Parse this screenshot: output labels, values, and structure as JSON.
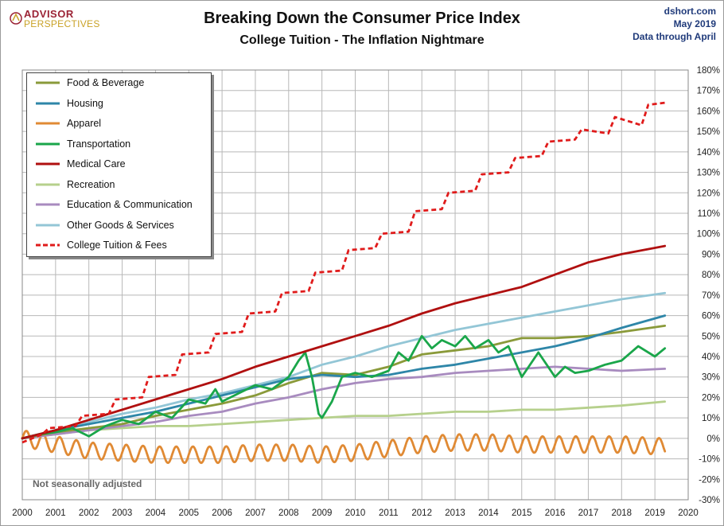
{
  "header": {
    "logo_line1": "ADVISOR",
    "logo_line2": "PERSPECTIVES",
    "title": "Breaking Down the Consumer Price Index",
    "subtitle": "College Tuition  - The Inflation Nightmare",
    "source_lines": [
      "dshort.com",
      "May 2019",
      "Data through April"
    ]
  },
  "note": "Not seasonally adjusted",
  "colors": {
    "food": "#8a9a3a",
    "housing": "#2e86a8",
    "apparel": "#e08a34",
    "transportation": "#1aa64a",
    "medical": "#b01010",
    "recreation": "#b6d08c",
    "education": "#a88bbf",
    "other": "#93c6d6",
    "tuition": "#e01b1b",
    "grid": "#b8b8b8",
    "brand_red": "#9b2335",
    "brand_gold": "#c9a227"
  },
  "chart_data": {
    "type": "line",
    "title": "Breaking Down the Consumer Price Index",
    "subtitle": "College Tuition  - The Inflation Nightmare",
    "x_ticks": [
      "2000",
      "2001",
      "2002",
      "2003",
      "2004",
      "2005",
      "2006",
      "2007",
      "2008",
      "2009",
      "2010",
      "2011",
      "2012",
      "2013",
      "2014",
      "2015",
      "2016",
      "2017",
      "2018",
      "2019",
      "2020"
    ],
    "y_ticks": [
      "180%",
      "170%",
      "160%",
      "150%",
      "140%",
      "130%",
      "120%",
      "110%",
      "100%",
      "90%",
      "80%",
      "70%",
      "60%",
      "50%",
      "40%",
      "30%",
      "20%",
      "10%",
      "0%",
      "-10%",
      "-20%",
      "-30%"
    ],
    "xlim": [
      2000,
      2020
    ],
    "ylim": [
      -30,
      180
    ],
    "y_unit": "percent change since 2000",
    "grid": true,
    "legend_position": "top-left",
    "series": [
      {
        "key": "food",
        "name": "Food & Beverage",
        "style": "solid",
        "x": [
          2000,
          2001,
          2002,
          2003,
          2004,
          2005,
          2006,
          2007,
          2008,
          2009,
          2010,
          2011,
          2012,
          2013,
          2014,
          2015,
          2016,
          2017,
          2018,
          2019.3
        ],
        "y": [
          0,
          3,
          5,
          7,
          11,
          14,
          17,
          21,
          27,
          32,
          31,
          35,
          41,
          43,
          45,
          49,
          49,
          50,
          52,
          55
        ]
      },
      {
        "key": "housing",
        "name": "Housing",
        "style": "solid",
        "x": [
          2000,
          2001,
          2002,
          2003,
          2004,
          2005,
          2006,
          2007,
          2008,
          2009,
          2010,
          2011,
          2012,
          2013,
          2014,
          2015,
          2016,
          2017,
          2018,
          2019.3
        ],
        "y": [
          0,
          4,
          7,
          10,
          13,
          17,
          21,
          25,
          29,
          31,
          30,
          31,
          34,
          36,
          39,
          42,
          45,
          49,
          54,
          60
        ]
      },
      {
        "key": "apparel",
        "name": "Apparel",
        "style": "oscillating",
        "amplitude": 4,
        "cycles_per_year": 2,
        "x": [
          2000,
          2001,
          2002,
          2003,
          2004,
          2005,
          2006,
          2007,
          2008,
          2009,
          2010,
          2011,
          2012,
          2013,
          2014,
          2015,
          2016,
          2017,
          2018,
          2019.3
        ],
        "y": [
          0,
          -3,
          -6,
          -7,
          -8,
          -8,
          -8,
          -7,
          -7,
          -8,
          -7,
          -5,
          -3,
          -2,
          -2,
          -3,
          -3,
          -3,
          -3,
          -4
        ]
      },
      {
        "key": "transportation",
        "name": "Transportation",
        "style": "solid",
        "x": [
          2000,
          2000.5,
          2001,
          2001.5,
          2002,
          2002.5,
          2003,
          2003.5,
          2004,
          2004.5,
          2005,
          2005.5,
          2005.8,
          2006,
          2006.5,
          2007,
          2007.5,
          2008,
          2008.3,
          2008.5,
          2008.7,
          2008.9,
          2009.0,
          2009.3,
          2009.6,
          2010,
          2010.5,
          2011,
          2011.3,
          2011.6,
          2012,
          2012.3,
          2012.6,
          2013,
          2013.3,
          2013.6,
          2014,
          2014.3,
          2014.6,
          2015,
          2015.5,
          2016,
          2016.3,
          2016.6,
          2017,
          2017.5,
          2018,
          2018.5,
          2019,
          2019.3
        ],
        "y": [
          0,
          2,
          3,
          5,
          1,
          6,
          9,
          7,
          13,
          10,
          19,
          17,
          24,
          18,
          22,
          26,
          24,
          30,
          38,
          42,
          30,
          12,
          10,
          18,
          30,
          32,
          30,
          33,
          42,
          38,
          50,
          44,
          48,
          45,
          50,
          44,
          48,
          42,
          45,
          30,
          42,
          30,
          35,
          32,
          33,
          36,
          38,
          45,
          40,
          44
        ]
      },
      {
        "key": "medical",
        "name": "Medical Care",
        "style": "solid",
        "x": [
          2000,
          2001,
          2002,
          2003,
          2004,
          2005,
          2006,
          2007,
          2008,
          2009,
          2010,
          2011,
          2012,
          2013,
          2014,
          2015,
          2016,
          2017,
          2018,
          2019.3
        ],
        "y": [
          0,
          4,
          9,
          14,
          19,
          24,
          29,
          35,
          40,
          45,
          50,
          55,
          61,
          66,
          70,
          74,
          80,
          86,
          90,
          94
        ]
      },
      {
        "key": "recreation",
        "name": "Recreation",
        "style": "solid",
        "x": [
          2000,
          2001,
          2002,
          2003,
          2004,
          2005,
          2006,
          2007,
          2008,
          2009,
          2010,
          2011,
          2012,
          2013,
          2014,
          2015,
          2016,
          2017,
          2018,
          2019.3
        ],
        "y": [
          0,
          2,
          4,
          5,
          6,
          6,
          7,
          8,
          9,
          10,
          11,
          11,
          12,
          13,
          13,
          14,
          14,
          15,
          16,
          18
        ]
      },
      {
        "key": "education",
        "name": "Education & Communication",
        "style": "solid",
        "x": [
          2000,
          2001,
          2002,
          2003,
          2004,
          2005,
          2006,
          2007,
          2008,
          2009,
          2010,
          2011,
          2012,
          2013,
          2014,
          2015,
          2016,
          2017,
          2018,
          2019.3
        ],
        "y": [
          0,
          2,
          4,
          6,
          8,
          11,
          13,
          17,
          20,
          24,
          27,
          29,
          30,
          32,
          33,
          34,
          35,
          34,
          33,
          34
        ]
      },
      {
        "key": "other",
        "name": "Other Goods & Services",
        "style": "solid",
        "x": [
          2000,
          2001,
          2002,
          2003,
          2004,
          2005,
          2006,
          2007,
          2008,
          2009,
          2010,
          2011,
          2012,
          2013,
          2014,
          2015,
          2016,
          2017,
          2018,
          2019.3
        ],
        "y": [
          0,
          4,
          8,
          12,
          15,
          19,
          22,
          26,
          30,
          36,
          40,
          45,
          49,
          53,
          56,
          59,
          62,
          65,
          68,
          71
        ]
      },
      {
        "key": "tuition",
        "name": "College Tuition & Fees",
        "style": "dashed-stepped",
        "x": [
          2000,
          2000.6,
          2000.8,
          2001.6,
          2001.8,
          2002.6,
          2002.8,
          2003.6,
          2003.8,
          2004.6,
          2004.8,
          2005.6,
          2005.8,
          2006.6,
          2006.8,
          2007.6,
          2007.8,
          2008.6,
          2008.8,
          2009.6,
          2009.8,
          2010.6,
          2010.8,
          2011.6,
          2011.8,
          2012.6,
          2012.8,
          2013.6,
          2013.8,
          2014.6,
          2014.8,
          2015.6,
          2015.8,
          2016.6,
          2016.8,
          2017.6,
          2017.8,
          2018.6,
          2018.8,
          2019.3
        ],
        "y": [
          -2,
          2,
          5,
          6,
          11,
          12,
          19,
          20,
          30,
          31,
          41,
          42,
          51,
          52,
          61,
          62,
          71,
          72,
          81,
          82,
          92,
          93,
          100,
          101,
          111,
          112,
          120,
          121,
          129,
          130,
          137,
          138,
          145,
          146,
          151,
          149,
          157,
          153,
          163,
          164
        ]
      }
    ]
  }
}
